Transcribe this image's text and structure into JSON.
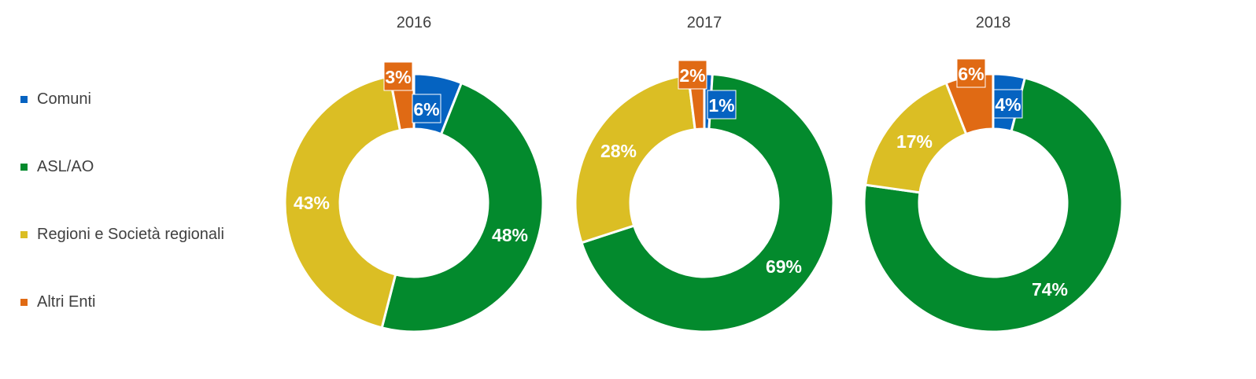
{
  "legend": {
    "items": [
      {
        "label": "Comuni",
        "color": "#0563C1"
      },
      {
        "label": "ASL/AO",
        "color": "#038A2D"
      },
      {
        "label": "Regioni e Società regionali",
        "color": "#DBBE24"
      },
      {
        "label": "Altri Enti",
        "color": "#E06A14"
      }
    ]
  },
  "chart_data": [
    {
      "type": "pie",
      "title": "2016",
      "categories": [
        "Comuni",
        "ASL/AO",
        "Regioni e Società regionali",
        "Altri Enti"
      ],
      "values": [
        6,
        48,
        43,
        3
      ],
      "labels": [
        "6%",
        "48%",
        "43%",
        "3%"
      ],
      "colors": [
        "#0563C1",
        "#038A2D",
        "#DBBE24",
        "#E06A14"
      ],
      "donut": true
    },
    {
      "type": "pie",
      "title": "2017",
      "categories": [
        "Comuni",
        "ASL/AO",
        "Regioni e Società regionali",
        "Altri Enti"
      ],
      "values": [
        1,
        69,
        28,
        2
      ],
      "labels": [
        "1%",
        "69%",
        "28%",
        "2%"
      ],
      "colors": [
        "#0563C1",
        "#038A2D",
        "#DBBE24",
        "#E06A14"
      ],
      "donut": true
    },
    {
      "type": "pie",
      "title": "2018",
      "categories": [
        "Comuni",
        "ASL/AO",
        "Regioni e Società regionali",
        "Altri Enti"
      ],
      "values": [
        4,
        74,
        17,
        6
      ],
      "labels": [
        "4%",
        "74%",
        "17%",
        "6%"
      ],
      "colors": [
        "#0563C1",
        "#038A2D",
        "#DBBE24",
        "#E06A14"
      ],
      "donut": true
    }
  ]
}
